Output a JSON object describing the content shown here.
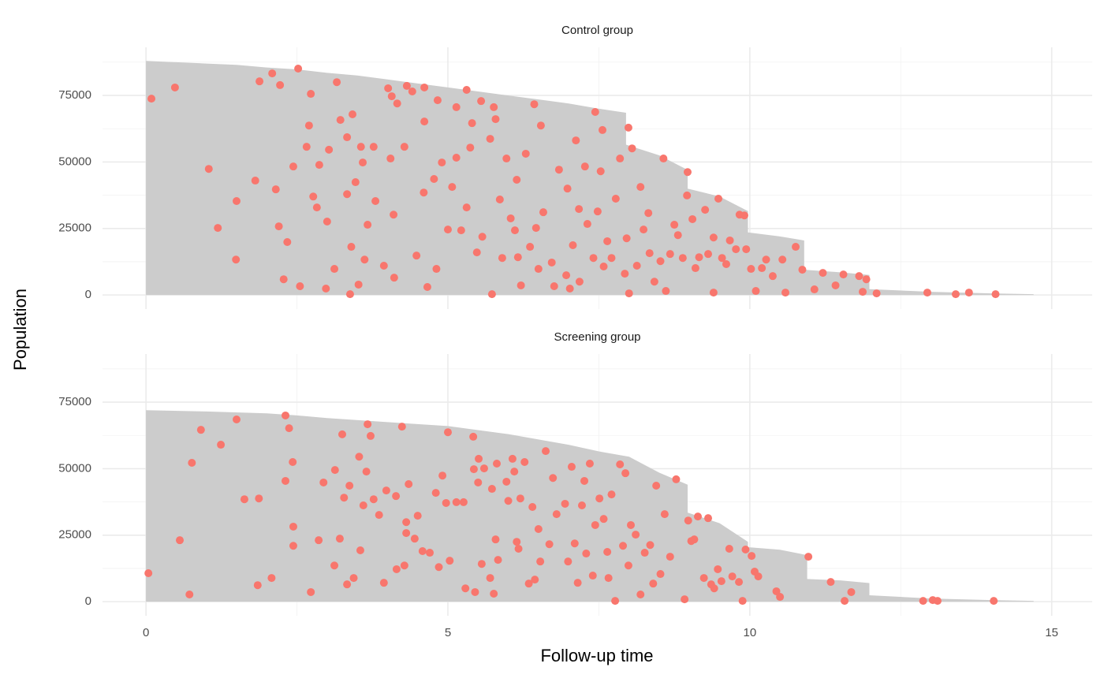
{
  "shared": {
    "x_label": "Follow-up time",
    "y_label": "Population"
  },
  "chart_data": [
    {
      "type": "scatter",
      "title": "Control group",
      "show_xtick_labels": false,
      "xlim": [
        -0.72,
        15.67
      ],
      "ylim": [
        -5300,
        93100
      ],
      "xticks": [
        0,
        5,
        10,
        15
      ],
      "xminor": [
        2.5,
        7.5,
        12.5
      ],
      "yticks": [
        0,
        25000,
        50000,
        75000
      ],
      "yminor": [
        12500,
        37500,
        62500,
        87500
      ],
      "grid": true,
      "area_color": "#cccccc",
      "point_color": "#f8766d",
      "area": {
        "x": [
          0,
          0.5,
          1,
          1.5,
          2,
          2.5,
          3,
          3.5,
          4,
          4.5,
          5,
          5.5,
          6,
          6.5,
          7,
          7.5,
          7.95,
          7.95,
          8.5,
          8.97,
          8.97,
          9.5,
          9.97,
          9.97,
          10.5,
          10.9,
          10.9,
          11.5,
          11.98,
          11.98,
          13,
          14,
          14.7
        ],
        "values": [
          88000,
          87500,
          87000,
          86500,
          85500,
          84800,
          83500,
          82500,
          81000,
          79500,
          78000,
          76500,
          75000,
          73500,
          72000,
          70000,
          68500,
          56500,
          52500,
          47000,
          40000,
          37000,
          31500,
          23500,
          22000,
          20500,
          9500,
          8500,
          7500,
          2200,
          1200,
          600,
          300
        ]
      },
      "points": {
        "x": [
          0.09,
          0.48,
          1.04,
          1.19,
          1.5,
          1.49,
          1.81,
          1.88,
          2.09,
          2.15,
          2.2,
          2.22,
          2.28,
          2.34,
          2.44,
          2.52,
          2.55,
          2.66,
          2.7,
          2.73,
          2.77,
          2.83,
          2.87,
          2.98,
          3.0,
          3.03,
          3.12,
          3.16,
          3.22,
          3.33,
          3.33,
          3.38,
          3.4,
          3.42,
          3.47,
          3.52,
          3.56,
          3.59,
          3.62,
          3.67,
          3.77,
          3.8,
          3.94,
          4.01,
          4.05,
          4.07,
          4.1,
          4.11,
          4.16,
          4.28,
          4.32,
          4.41,
          4.48,
          4.6,
          4.61,
          4.61,
          4.66,
          4.77,
          4.81,
          4.83,
          4.9,
          5.0,
          5.07,
          5.14,
          5.14,
          5.22,
          5.31,
          5.31,
          5.37,
          5.4,
          5.48,
          5.55,
          5.57,
          5.7,
          5.73,
          5.76,
          5.79,
          5.86,
          5.9,
          5.97,
          6.04,
          6.11,
          6.14,
          6.16,
          6.21,
          6.29,
          6.36,
          6.43,
          6.46,
          6.5,
          6.54,
          6.58,
          6.72,
          6.76,
          6.84,
          6.96,
          6.98,
          7.02,
          7.07,
          7.12,
          7.17,
          7.18,
          7.27,
          7.31,
          7.41,
          7.44,
          7.48,
          7.53,
          7.56,
          7.58,
          7.64,
          7.71,
          7.78,
          7.85,
          7.93,
          7.96,
          7.99,
          8.0,
          8.05,
          8.13,
          8.19,
          8.24,
          8.32,
          8.34,
          8.42,
          8.52,
          8.57,
          8.61,
          8.68,
          8.75,
          8.81,
          8.89,
          8.96,
          8.97,
          9.05,
          9.1,
          9.16,
          9.26,
          9.31,
          9.4,
          9.4,
          9.48,
          9.54,
          9.61,
          9.67,
          9.77,
          9.83,
          9.91,
          9.94,
          10.02,
          10.1,
          10.2,
          10.27,
          10.38,
          10.54,
          10.59,
          10.76,
          10.87,
          11.07,
          11.21,
          11.42,
          11.55,
          11.87,
          11.81,
          11.93,
          12.1,
          12.94,
          13.41,
          13.63,
          14.07
        ],
        "values": [
          73800,
          78000,
          47400,
          25200,
          35300,
          13300,
          43000,
          80300,
          83300,
          39700,
          25800,
          78900,
          5900,
          19900,
          48300,
          85100,
          3300,
          55700,
          63700,
          75600,
          37000,
          32900,
          48900,
          2400,
          27600,
          54600,
          9800,
          80000,
          65800,
          59300,
          37900,
          300,
          18100,
          67900,
          42400,
          3900,
          55700,
          49800,
          13300,
          26400,
          55700,
          35300,
          11000,
          77700,
          51300,
          74700,
          30200,
          6500,
          72000,
          55700,
          78600,
          76500,
          14800,
          38500,
          78000,
          65200,
          3000,
          43600,
          9800,
          73200,
          49800,
          24600,
          40600,
          70600,
          51600,
          24300,
          77100,
          32900,
          55400,
          64600,
          16000,
          72900,
          21900,
          58700,
          300,
          70600,
          66100,
          35900,
          13900,
          51300,
          28800,
          24300,
          43300,
          14200,
          3600,
          53100,
          18100,
          71700,
          25200,
          9800,
          63700,
          31100,
          12200,
          3300,
          47100,
          7400,
          40000,
          2400,
          18700,
          58100,
          32300,
          5000,
          48300,
          26700,
          13900,
          68800,
          31400,
          46500,
          62000,
          10700,
          20200,
          13900,
          36200,
          51300,
          8000,
          21300,
          62900,
          600,
          55100,
          11000,
          40600,
          24600,
          30800,
          15700,
          5000,
          12700,
          51300,
          1500,
          15400,
          26400,
          22500,
          13900,
          37400,
          46200,
          28500,
          10100,
          14200,
          32000,
          15400,
          21600,
          900,
          36200,
          13900,
          11600,
          20500,
          17200,
          30200,
          29900,
          17200,
          9800,
          1500,
          10100,
          13300,
          7100,
          13300,
          900,
          18100,
          9500,
          2100,
          8300,
          3600,
          7700,
          1200,
          7100,
          5900,
          600,
          900,
          300,
          900,
          300
        ]
      }
    },
    {
      "type": "scatter",
      "title": "Screening group",
      "show_xtick_labels": true,
      "xlim": [
        -0.72,
        15.67
      ],
      "ylim": [
        -5300,
        93100
      ],
      "xticks": [
        0,
        5,
        10,
        15
      ],
      "xminor": [
        2.5,
        7.5,
        12.5
      ],
      "yticks": [
        0,
        25000,
        50000,
        75000
      ],
      "yminor": [
        12500,
        37500,
        62500,
        87500
      ],
      "grid": true,
      "area_color": "#cccccc",
      "point_color": "#f8766d",
      "area": {
        "x": [
          0,
          1,
          2,
          2.5,
          3,
          4,
          5,
          6,
          7,
          7.5,
          8,
          8.5,
          8.97,
          8.97,
          9.5,
          9.97,
          9.97,
          10.5,
          10.95,
          10.95,
          11.5,
          11.98,
          11.98,
          13,
          14,
          14.7
        ],
        "values": [
          72000,
          71500,
          70800,
          70000,
          69000,
          67500,
          66000,
          63000,
          59000,
          56500,
          54500,
          48500,
          44000,
          33500,
          29500,
          22500,
          20500,
          19500,
          17500,
          8500,
          8000,
          7000,
          2400,
          1200,
          600,
          300
        ]
      },
      "points": {
        "x": [
          0.04,
          0.56,
          0.72,
          0.76,
          0.91,
          1.24,
          1.5,
          1.63,
          1.85,
          1.87,
          2.08,
          2.31,
          2.31,
          2.37,
          2.43,
          2.44,
          2.44,
          2.73,
          2.86,
          2.94,
          3.12,
          3.13,
          3.21,
          3.25,
          3.28,
          3.33,
          3.37,
          3.44,
          3.53,
          3.55,
          3.6,
          3.65,
          3.67,
          3.72,
          3.77,
          3.86,
          3.94,
          3.98,
          4.14,
          4.15,
          4.24,
          4.28,
          4.31,
          4.31,
          4.35,
          4.45,
          4.5,
          4.58,
          4.7,
          4.8,
          4.85,
          4.91,
          4.97,
          5.0,
          5.03,
          5.14,
          5.26,
          5.29,
          5.42,
          5.43,
          5.45,
          5.5,
          5.51,
          5.56,
          5.6,
          5.7,
          5.73,
          5.76,
          5.79,
          5.81,
          5.83,
          5.97,
          6.0,
          6.07,
          6.1,
          6.14,
          6.17,
          6.2,
          6.27,
          6.34,
          6.4,
          6.44,
          6.5,
          6.53,
          6.62,
          6.68,
          6.74,
          6.8,
          6.94,
          6.99,
          7.05,
          7.1,
          7.15,
          7.22,
          7.26,
          7.29,
          7.35,
          7.4,
          7.44,
          7.51,
          7.58,
          7.64,
          7.66,
          7.71,
          7.77,
          7.85,
          7.9,
          7.94,
          7.99,
          8.03,
          8.11,
          8.19,
          8.26,
          8.35,
          8.4,
          8.45,
          8.52,
          8.59,
          8.68,
          8.78,
          8.92,
          8.98,
          9.03,
          9.08,
          9.14,
          9.24,
          9.31,
          9.36,
          9.41,
          9.47,
          9.53,
          9.66,
          9.71,
          9.82,
          9.88,
          9.93,
          10.03,
          10.08,
          10.14,
          10.44,
          10.5,
          10.97,
          11.34,
          11.57,
          11.68,
          12.87,
          13.03,
          13.11,
          14.04
        ],
        "values": [
          10700,
          23100,
          2700,
          52200,
          64600,
          59000,
          68500,
          38500,
          6200,
          38800,
          8900,
          70000,
          45400,
          65200,
          52500,
          28200,
          21000,
          3600,
          23100,
          44800,
          13600,
          49500,
          23700,
          62900,
          39100,
          6500,
          43600,
          8900,
          54500,
          19300,
          36200,
          48900,
          66700,
          62300,
          38500,
          32600,
          7100,
          41800,
          39700,
          12200,
          65800,
          13600,
          25800,
          29900,
          44200,
          23700,
          32300,
          19000,
          18400,
          40900,
          13000,
          47400,
          37100,
          63700,
          15400,
          37400,
          37400,
          5000,
          62000,
          49800,
          3600,
          44800,
          53700,
          14200,
          50100,
          8900,
          42400,
          3000,
          23400,
          51900,
          15700,
          45100,
          37900,
          53700,
          48900,
          22500,
          19900,
          38800,
          52500,
          6800,
          35600,
          8300,
          27300,
          15100,
          56600,
          21600,
          46500,
          32900,
          36800,
          15100,
          50700,
          21900,
          7100,
          36200,
          45400,
          18100,
          51900,
          9800,
          28800,
          38800,
          31100,
          18700,
          8900,
          40300,
          300,
          51600,
          21000,
          48300,
          13600,
          28800,
          25200,
          2700,
          18400,
          21300,
          6800,
          43600,
          10400,
          32900,
          16900,
          46000,
          900,
          30500,
          22800,
          23400,
          32000,
          8900,
          31400,
          6500,
          5000,
          12200,
          7700,
          19900,
          9500,
          7400,
          300,
          19600,
          17200,
          11300,
          9500,
          3900,
          1800,
          16900,
          7400,
          300,
          3600,
          300,
          600,
          300,
          300
        ]
      }
    }
  ]
}
